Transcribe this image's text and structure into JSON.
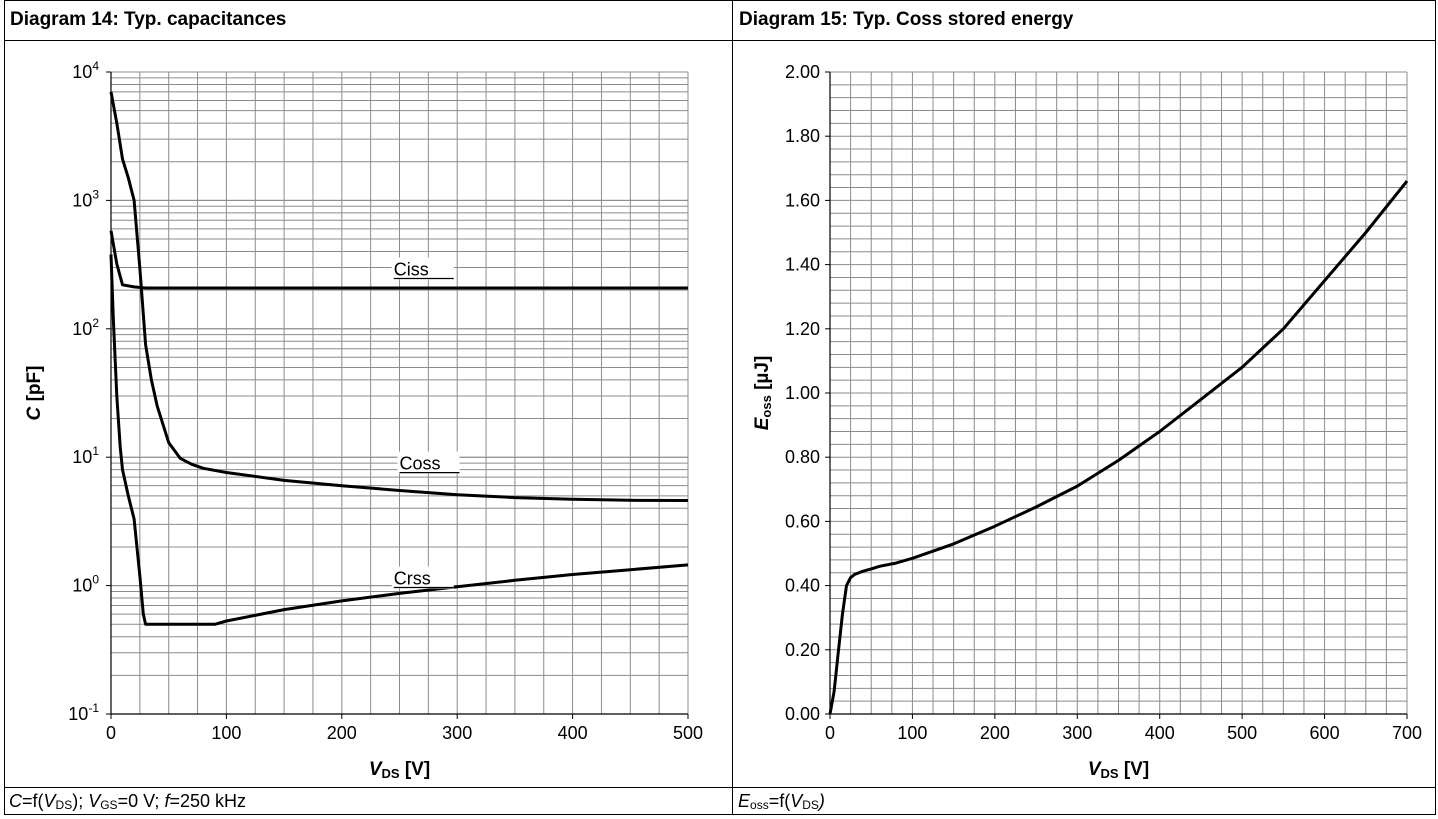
{
  "panels": [
    {
      "title": "Diagram 14: Typ. capacitances",
      "caption": {
        "c": "C",
        "eq_open": "=f(",
        "v": "V",
        "ds": "DS",
        "close1": "); ",
        "v2": "V",
        "gs": "GS",
        "mid": "=0 V; ",
        "f": "f",
        "tail": "=250 kHz"
      }
    },
    {
      "title": "Diagram 15: Typ. Coss stored energy",
      "caption": {
        "e": "E",
        "oss": "oss",
        "eq_open": "=f(",
        "v": "V",
        "ds": "DS",
        "close": ")"
      }
    }
  ],
  "chart_data": [
    {
      "type": "line",
      "title": "Diagram 14: Typ. capacitances",
      "xlabel": "VDS [V]",
      "xlabel_main": "V",
      "xlabel_sub": "DS",
      "xlabel_unit": " [V]",
      "ylabel": "C [pF]",
      "ylabel_main": "C",
      "ylabel_unit": " [pF]",
      "xlim": [
        0,
        500
      ],
      "ylim": [
        0.1,
        10000
      ],
      "yscale": "log",
      "grid": true,
      "x_ticks": [
        0,
        100,
        200,
        300,
        400,
        500
      ],
      "x_tick_labels": [
        "0",
        "100",
        "200",
        "300",
        "400",
        "500"
      ],
      "y_ticks": [
        0.1,
        1,
        10,
        100,
        1000,
        10000
      ],
      "y_tick_base": "10",
      "y_tick_exponents": [
        "-1",
        "0",
        "1",
        "2",
        "3",
        "4"
      ],
      "series": [
        {
          "name": "Ciss",
          "x": [
            0,
            5,
            10,
            20,
            30,
            50,
            100,
            200,
            300,
            400,
            500
          ],
          "y": [
            580,
            320,
            220,
            212,
            208,
            208,
            208,
            208,
            208,
            208,
            208
          ]
        },
        {
          "name": "Coss",
          "x": [
            0,
            5,
            10,
            15,
            20,
            25,
            30,
            35,
            40,
            50,
            60,
            70,
            80,
            100,
            150,
            200,
            250,
            300,
            350,
            400,
            450,
            500
          ],
          "y": [
            7000,
            4000,
            2100,
            1500,
            1000,
            300,
            75,
            40,
            25,
            13,
            9.8,
            8.8,
            8.2,
            7.6,
            6.6,
            6.0,
            5.5,
            5.1,
            4.85,
            4.7,
            4.62,
            4.6
          ]
        },
        {
          "name": "Crss",
          "x": [
            0,
            2,
            5,
            8,
            10,
            15,
            20,
            25,
            28,
            30,
            40,
            60,
            90,
            100,
            150,
            200,
            250,
            300,
            350,
            400,
            450,
            500
          ],
          "y": [
            380,
            120,
            30,
            12,
            8,
            5,
            3.3,
            1.2,
            0.6,
            0.5,
            0.5,
            0.5,
            0.5,
            0.53,
            0.65,
            0.76,
            0.87,
            0.98,
            1.1,
            1.22,
            1.33,
            1.45
          ]
        }
      ],
      "annotations": [
        {
          "text": "Ciss",
          "x": 245,
          "y": 260
        },
        {
          "text": "Coss",
          "x": 250,
          "y": 8.0
        },
        {
          "text": "Crss",
          "x": 245,
          "y": 1.02
        }
      ]
    },
    {
      "type": "line",
      "title": "Diagram 15: Typ. Coss stored energy",
      "xlabel": "VDS [V]",
      "xlabel_main": "V",
      "xlabel_sub": "DS",
      "xlabel_unit": " [V]",
      "ylabel": "Eoss [µJ]",
      "ylabel_main": "E",
      "ylabel_sub": "oss",
      "ylabel_unit": " [µJ]",
      "xlim": [
        0,
        700
      ],
      "ylim": [
        0,
        2.0
      ],
      "grid": true,
      "x_ticks": [
        0,
        100,
        200,
        300,
        400,
        500,
        600,
        700
      ],
      "x_tick_labels": [
        "0",
        "100",
        "200",
        "300",
        "400",
        "500",
        "600",
        "700"
      ],
      "y_ticks": [
        0,
        0.2,
        0.4,
        0.6,
        0.8,
        1.0,
        1.2,
        1.4,
        1.6,
        1.8,
        2.0
      ],
      "y_tick_labels": [
        "0.00",
        "0.20",
        "0.40",
        "0.60",
        "0.80",
        "1.00",
        "1.20",
        "1.40",
        "1.60",
        "1.80",
        "2.00"
      ],
      "series": [
        {
          "name": "",
          "x": [
            0,
            5,
            10,
            15,
            20,
            25,
            30,
            40,
            50,
            60,
            80,
            100,
            150,
            200,
            250,
            300,
            350,
            400,
            450,
            500,
            550,
            600,
            650,
            700
          ],
          "y": [
            0.0,
            0.07,
            0.19,
            0.31,
            0.4,
            0.425,
            0.435,
            0.445,
            0.452,
            0.46,
            0.47,
            0.485,
            0.53,
            0.585,
            0.645,
            0.71,
            0.79,
            0.88,
            0.98,
            1.08,
            1.2,
            1.35,
            1.5,
            1.66
          ]
        }
      ]
    }
  ]
}
